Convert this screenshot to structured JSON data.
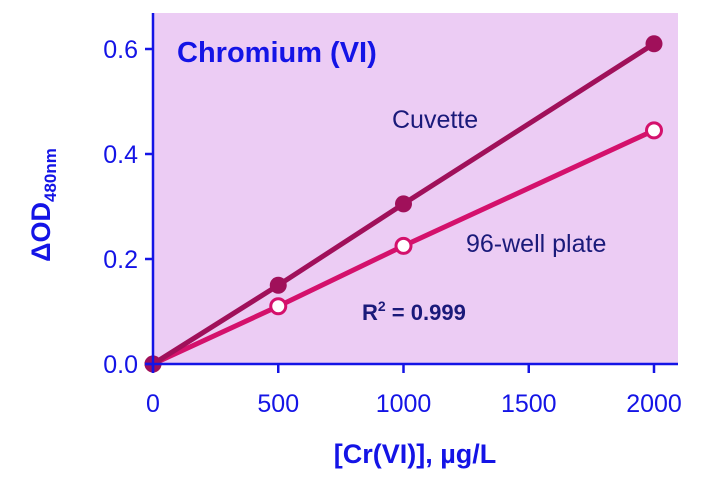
{
  "chart_data": {
    "type": "line",
    "title": "Chromium (VI)",
    "xlabel": "[Cr(VI)], µg/L",
    "ylabel_main": "ΔOD",
    "ylabel_sub": "480nm",
    "xlim": [
      0,
      2090
    ],
    "ylim": [
      0,
      0.67
    ],
    "xticks": [
      0,
      500,
      1000,
      1500,
      2000
    ],
    "yticks": [
      "0.0",
      "0.2",
      "0.4",
      "0.6"
    ],
    "grid": false,
    "series": [
      {
        "name": "Cuvette",
        "color": "#a0105a",
        "marker": "filled",
        "x": [
          0,
          500,
          1000,
          2000
        ],
        "y": [
          0,
          0.15,
          0.305,
          0.61
        ]
      },
      {
        "name": "96-well plate",
        "color": "#d4116c",
        "marker": "open",
        "x": [
          0,
          500,
          1000,
          2000
        ],
        "y": [
          0,
          0.11,
          0.225,
          0.445
        ]
      }
    ],
    "annotation": {
      "r2_label": "R",
      "r2_sup": "2",
      "r2_value": " = 0.999"
    },
    "colors": {
      "background": "#ecccf4",
      "axis": "#1414e6",
      "label_text": "#1a1a7a"
    }
  }
}
